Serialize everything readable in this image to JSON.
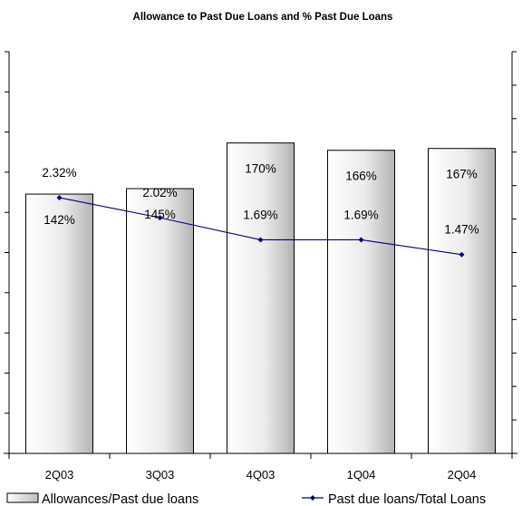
{
  "chart_data": {
    "type": "bar",
    "title": "Allowance to Past Due Loans and % Past Due Loans",
    "categories": [
      "2Q03",
      "3Q03",
      "4Q03",
      "1Q04",
      "2Q04"
    ],
    "series": [
      {
        "name": "Allowances/Past due loans",
        "type": "bar",
        "axis": "left",
        "values": [
          142,
          145,
          170,
          166,
          167
        ],
        "labels": [
          "142%",
          "145%",
          "170%",
          "166%",
          "167%"
        ]
      },
      {
        "name": "Past due loans/Total Loans",
        "type": "line",
        "axis": "right",
        "values": [
          2.32,
          2.02,
          1.69,
          1.69,
          1.47
        ],
        "labels": [
          "2.32%",
          "2.02%",
          "1.69%",
          "1.69%",
          "1.47%"
        ]
      }
    ],
    "ylim_left": [
      0,
      220
    ],
    "ylim_right": [
      -1.5,
      4.5
    ],
    "tick_labels_shown": false,
    "grid": false,
    "legend_position": "bottom",
    "colors": {
      "bar_edge": "#000000",
      "bar_fill_light": "#ffffff",
      "bar_fill_dark": "#b4b4b4",
      "line": "#000080"
    }
  }
}
